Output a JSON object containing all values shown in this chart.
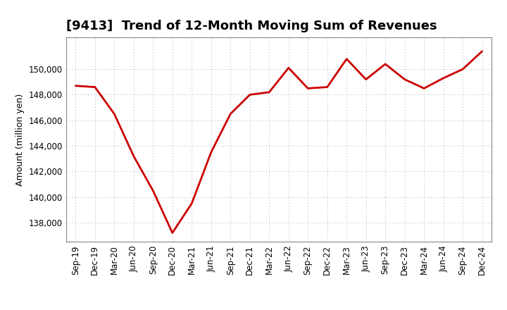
{
  "title": "[9413]  Trend of 12-Month Moving Sum of Revenues",
  "ylabel": "Amount (million yen)",
  "line_color": "#cc0000",
  "background_color": "#ffffff",
  "grid_color": "#aaaaaa",
  "x_labels": [
    "Sep-19",
    "Dec-19",
    "Mar-20",
    "Jun-20",
    "Sep-20",
    "Dec-20",
    "Mar-21",
    "Jun-21",
    "Sep-21",
    "Dec-21",
    "Mar-22",
    "Jun-22",
    "Sep-22",
    "Dec-22",
    "Mar-23",
    "Jun-23",
    "Sep-23",
    "Dec-23",
    "Mar-24",
    "Jun-24",
    "Sep-24",
    "Dec-24"
  ],
  "values": [
    148700,
    148600,
    146500,
    143200,
    140500,
    137200,
    139500,
    143500,
    146500,
    148000,
    148200,
    150100,
    148500,
    148600,
    150800,
    149200,
    150400,
    149200,
    148500,
    149300,
    150000,
    151400
  ],
  "ylim_min": 136500,
  "ylim_max": 152500,
  "yticks": [
    138000,
    140000,
    142000,
    144000,
    146000,
    148000,
    150000
  ],
  "linewidth": 2.0,
  "title_fontsize": 13,
  "axis_fontsize": 9,
  "tick_fontsize": 8.5
}
